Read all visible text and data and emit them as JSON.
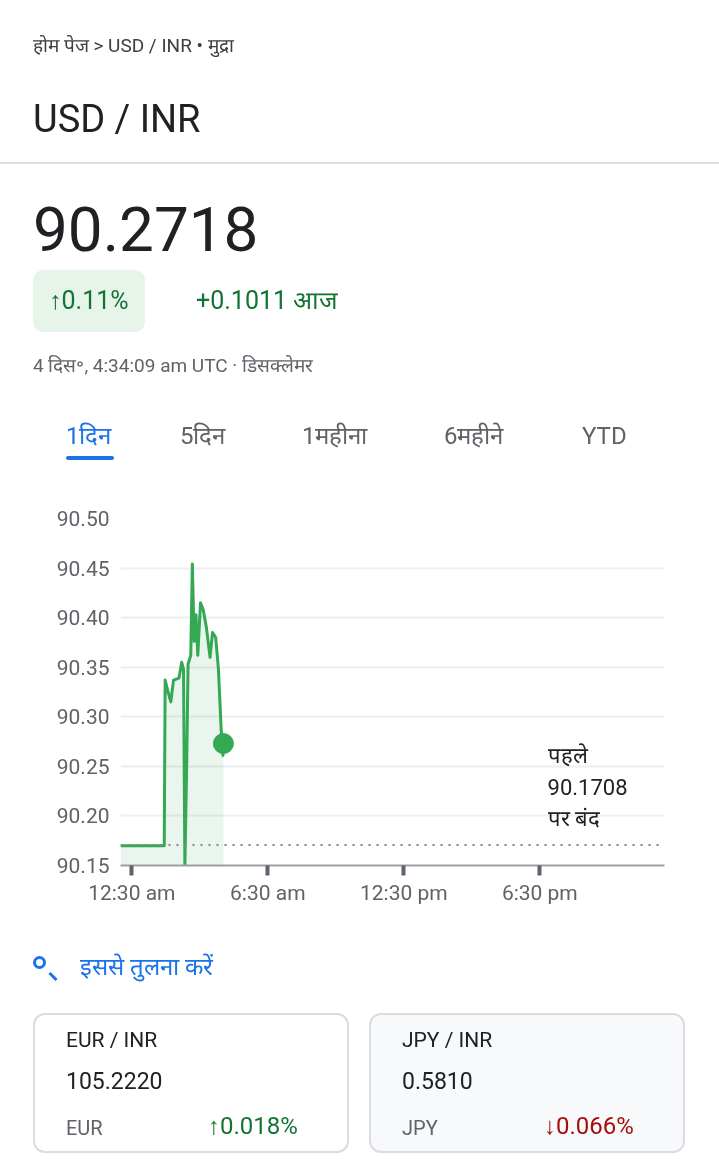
{
  "chart_data": [
    {
      "type": "other",
      "title": "USD / INR",
      "annotations": [
        "होम पेज > USD / INR • मुद्रा",
        "90.2718",
        "↑0.11%",
        "+0.1011 आज",
        "4 दिस॰, 4:34:09 am UTC · डिसक्लेमर",
        "1दिन",
        "5दिन",
        "1महीना",
        "6महीने",
        "YTD"
      ]
    },
    {
      "type": "line",
      "xlim": [
        0,
        24
      ],
      "xticks": [
        {
          "value": 0.5,
          "label": "12:30 am"
        },
        {
          "value": 6.5,
          "label": "6:30 am"
        },
        {
          "value": 12.5,
          "label": "12:30 pm"
        },
        {
          "value": 18.5,
          "label": "6:30 pm"
        }
      ],
      "ylim": [
        90.15,
        90.5
      ],
      "yticks": [
        90.15,
        {
          "value": 90.2,
          "label": "90.20"
        },
        90.25,
        {
          "value": 90.3,
          "label": "90.30"
        },
        90.35,
        {
          "value": 90.4,
          "label": "90.40"
        },
        90.45,
        {
          "value": 90.5,
          "label": "90.50"
        }
      ],
      "grid": "y",
      "line_style": "solid",
      "series": [
        {
          "type": "area",
          "color": "#34a853",
          "x": [
            0,
            1.93,
            1.97,
            2.1,
            2.22,
            2.34,
            2.58,
            2.7,
            2.78,
            2.84,
            2.92,
            2.98,
            3.1,
            3.17,
            3.25,
            3.33,
            3.41,
            3.53,
            3.65,
            3.79,
            3.95,
            4.06,
            4.2,
            4.32,
            4.44,
            4.52,
            4.54
          ],
          "values": [
            90.17,
            90.17,
            90.337,
            90.325,
            90.315,
            90.337,
            90.339,
            90.355,
            90.348,
            90.15,
            90.25,
            90.353,
            90.362,
            90.454,
            90.376,
            90.403,
            90.362,
            90.415,
            90.408,
            90.39,
            90.36,
            90.385,
            90.38,
            90.348,
            90.288,
            90.261,
            90.273
          ]
        },
        {
          "type": "scatter",
          "color": "#34a853",
          "x": [
            4.54
          ],
          "values": [
            90.273
          ]
        }
      ],
      "ref_lines": [
        {
          "axis": "y",
          "value": 90.1708,
          "label": "पहले\n90.1708\nपर बंद",
          "color": "#80868b",
          "line_style": "dotted"
        }
      ]
    },
    {
      "type": "other",
      "title": "इससे तुलना करें",
      "annotations": [
        "EUR / INR",
        "105.2220",
        "EUR",
        "↑0.018%",
        "JPY / INR",
        "0.5810",
        "JPY",
        "↓0.066%"
      ]
    }
  ]
}
